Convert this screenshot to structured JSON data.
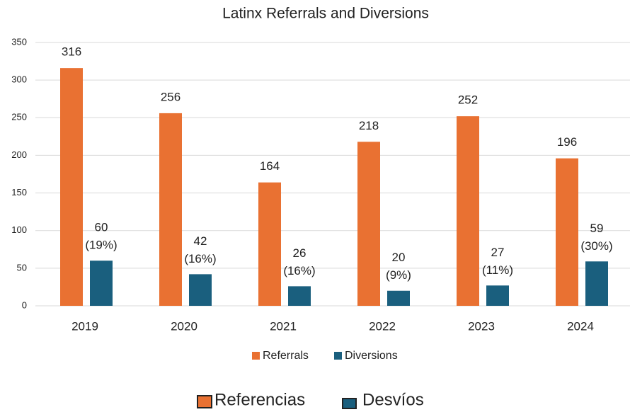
{
  "chart_data": {
    "type": "bar",
    "title": "Latinx Referrals and Diversions",
    "categories": [
      "2019",
      "2020",
      "2021",
      "2022",
      "2023",
      "2024"
    ],
    "series": [
      {
        "name": "Referrals",
        "color": "#e97132",
        "values": [
          316,
          256,
          164,
          218,
          252,
          196
        ]
      },
      {
        "name": "Diversions",
        "color": "#1a5f7e",
        "values": [
          60,
          42,
          26,
          20,
          27,
          59
        ],
        "percent_labels": [
          "(19%)",
          "(16%)",
          "(16%)",
          "(9%)",
          "(11%)",
          "(30%)"
        ]
      }
    ],
    "ylim": [
      0,
      350
    ],
    "yticks": [
      0,
      50,
      100,
      150,
      200,
      250,
      300,
      350
    ],
    "grid": true,
    "legend_position": "bottom",
    "legend_es": [
      "Referencias",
      "Desvíos"
    ]
  }
}
